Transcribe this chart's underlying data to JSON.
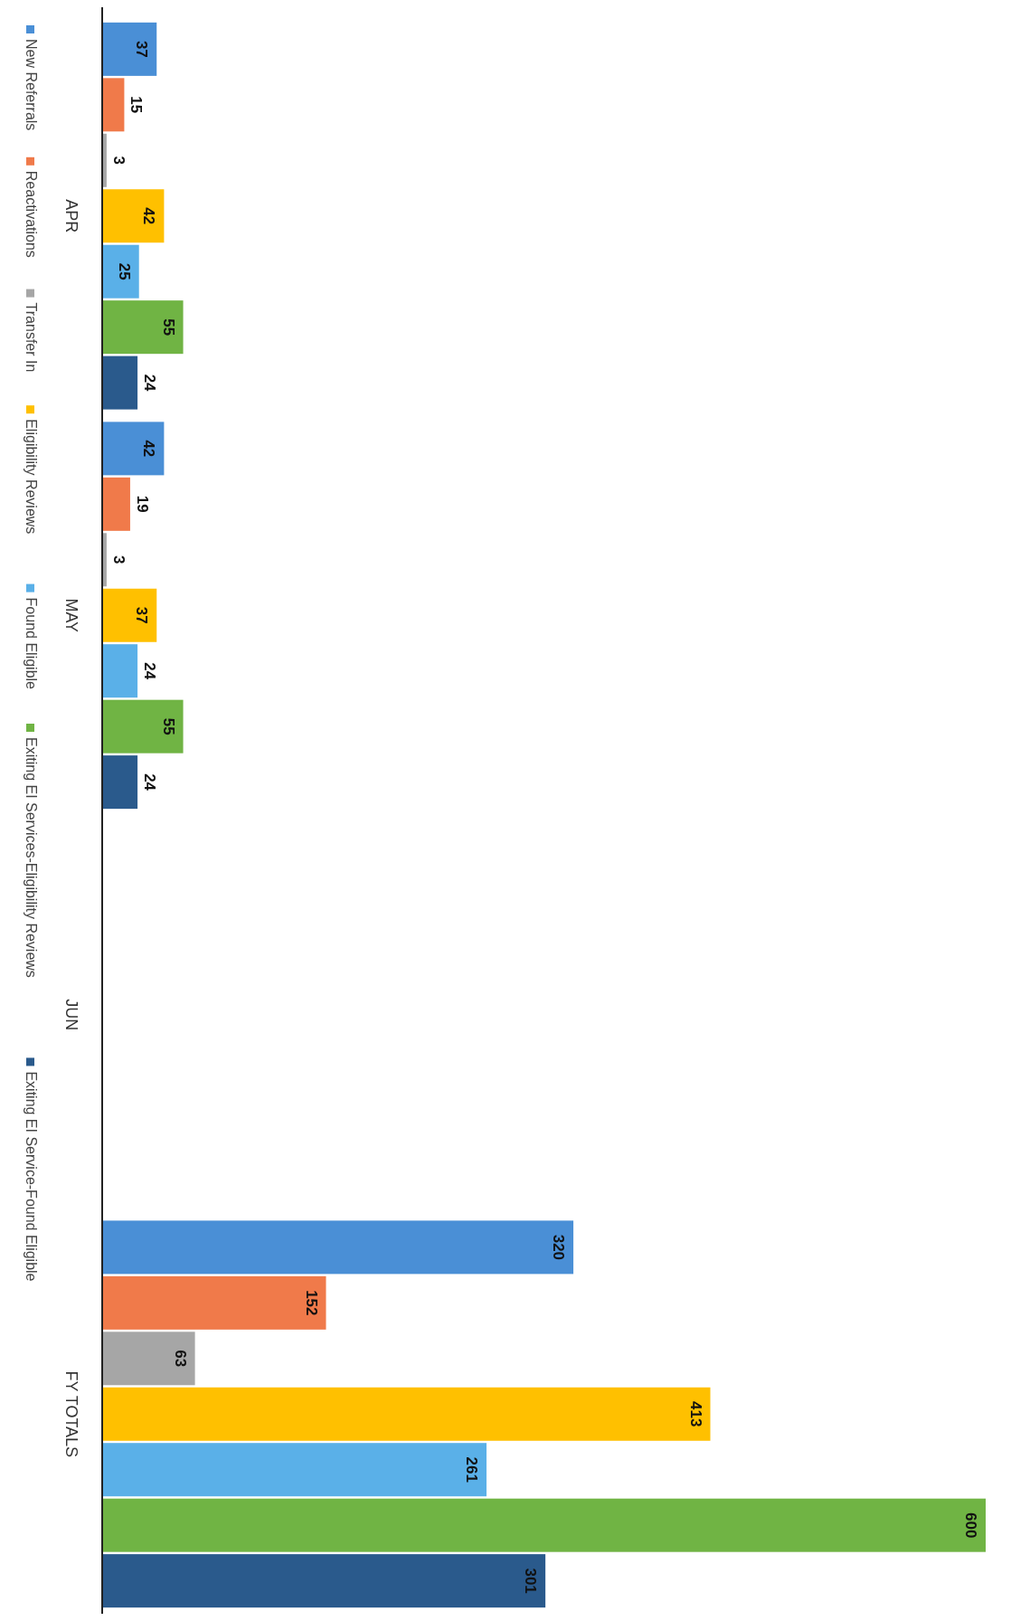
{
  "chart_data": {
    "type": "bar",
    "categories": [
      "APR",
      "MAY",
      "JUN",
      "FY TOTALS"
    ],
    "series": [
      {
        "name": "New Referrals",
        "color": "#4a8fd6",
        "values": [
          37,
          42,
          null,
          320
        ]
      },
      {
        "name": "Reactivations",
        "color": "#f07a4a",
        "values": [
          15,
          19,
          null,
          152
        ]
      },
      {
        "name": "Transfer In",
        "color": "#a6a6a6",
        "values": [
          3,
          3,
          null,
          63
        ]
      },
      {
        "name": "Eligibility Reviews",
        "color": "#ffc000",
        "values": [
          42,
          37,
          null,
          413
        ]
      },
      {
        "name": "Found Eligible",
        "color": "#5ab0e8",
        "values": [
          25,
          24,
          null,
          261
        ]
      },
      {
        "name": "Exiting EI Services-Eligibility Reviews",
        "color": "#70b444",
        "values": [
          55,
          55,
          null,
          600
        ]
      },
      {
        "name": "Exiting EI Service-Found Eligible",
        "color": "#2a5a8c",
        "values": [
          24,
          24,
          null,
          301
        ]
      }
    ],
    "data_labels": true,
    "legend": "left",
    "orientation": "horizontal"
  }
}
